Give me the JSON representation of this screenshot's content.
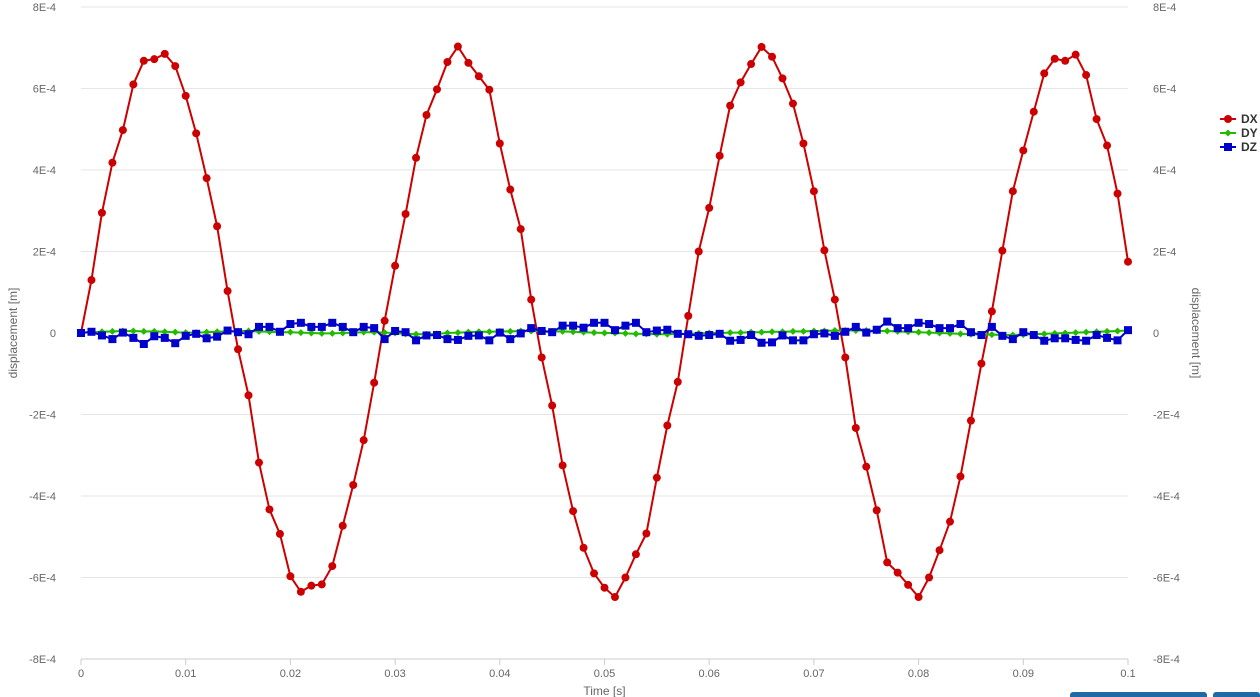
{
  "chart_data": {
    "type": "line",
    "title": "",
    "xlabel": "Time [s]",
    "ylabel": "displacement [m]",
    "ylabel_right": "displacement [m]",
    "xlim": [
      0,
      0.1
    ],
    "ylim": [
      -0.0008,
      0.0008
    ],
    "x_ticks": [
      "0",
      "0.01",
      "0.02",
      "0.03",
      "0.04",
      "0.05",
      "0.06",
      "0.07",
      "0.08",
      "0.09",
      "0.1"
    ],
    "y_ticks": [
      "8E-4",
      "6E-4",
      "4E-4",
      "2E-4",
      "0",
      "-2E-4",
      "-4E-4",
      "-6E-4",
      "-8E-4"
    ],
    "grid": "horizontal",
    "legend_position": "right",
    "x": [
      0,
      0.001,
      0.002,
      0.003,
      0.004,
      0.005,
      0.006,
      0.007,
      0.008,
      0.009,
      0.01,
      0.011,
      0.012,
      0.013,
      0.014,
      0.015,
      0.016,
      0.017,
      0.018,
      0.019,
      0.02,
      0.021,
      0.022,
      0.023,
      0.024,
      0.025,
      0.026,
      0.027,
      0.028,
      0.029,
      0.03,
      0.031,
      0.032,
      0.033,
      0.034,
      0.035,
      0.036,
      0.037,
      0.038,
      0.039,
      0.04,
      0.041,
      0.042,
      0.043,
      0.044,
      0.045,
      0.046,
      0.047,
      0.048,
      0.049,
      0.05,
      0.051,
      0.052,
      0.053,
      0.054,
      0.055,
      0.056,
      0.057,
      0.058,
      0.059,
      0.06,
      0.061,
      0.062,
      0.063,
      0.064,
      0.065,
      0.066,
      0.067,
      0.068,
      0.069,
      0.07,
      0.071,
      0.072,
      0.073,
      0.074,
      0.075,
      0.076,
      0.077,
      0.078,
      0.079,
      0.08,
      0.081,
      0.082,
      0.083,
      0.084,
      0.085,
      0.086,
      0.087,
      0.088,
      0.089,
      0.09,
      0.091,
      0.092,
      0.093,
      0.094,
      0.095,
      0.096,
      0.097,
      0.098,
      0.099,
      0.1
    ],
    "series": [
      {
        "name": "DX",
        "color": "#cc0000",
        "marker": "circle",
        "values": [
          0,
          0.00013,
          0.000295,
          0.000418,
          0.000498,
          0.00061,
          0.000668,
          0.000672,
          0.000685,
          0.000655,
          0.000582,
          0.00049,
          0.00038,
          0.000262,
          0.000103,
          -4e-05,
          -0.000153,
          -0.000318,
          -0.000433,
          -0.000493,
          -0.000597,
          -0.000635,
          -0.00062,
          -0.000617,
          -0.000572,
          -0.000473,
          -0.000373,
          -0.000263,
          -0.000122,
          3e-05,
          0.000165,
          0.000292,
          0.00043,
          0.000535,
          0.000598,
          0.000665,
          0.000703,
          0.000663,
          0.00063,
          0.000597,
          0.000465,
          0.000352,
          0.000255,
          8.2e-05,
          -6e-05,
          -0.000178,
          -0.000325,
          -0.000437,
          -0.000527,
          -0.00059,
          -0.000625,
          -0.000648,
          -0.0006,
          -0.000543,
          -0.000492,
          -0.000355,
          -0.000227,
          -0.00012,
          4.2e-05,
          0.0002,
          0.000307,
          0.000435,
          0.000558,
          0.000615,
          0.00066,
          0.000702,
          0.000678,
          0.000625,
          0.000563,
          0.000465,
          0.000348,
          0.000203,
          8.2e-05,
          -6e-05,
          -0.000233,
          -0.000328,
          -0.000435,
          -0.000563,
          -0.000588,
          -0.000618,
          -0.000648,
          -0.0006,
          -0.000533,
          -0.000463,
          -0.000352,
          -0.000215,
          -7.5e-05,
          5.3e-05,
          0.000202,
          0.000348,
          0.000448,
          0.000543,
          0.000637,
          0.000673,
          0.000668,
          0.000683,
          0.000633,
          0.000525,
          0.00046,
          0.000342,
          0.000175
        ]
      },
      {
        "name": "DY",
        "color": "#22bb00",
        "marker": "diamond",
        "values": [
          0,
          2e-06,
          3e-06,
          4e-06,
          5e-06,
          5e-06,
          4e-06,
          4e-06,
          3e-06,
          2e-06,
          1e-06,
          1e-06,
          2e-06,
          3e-06,
          4e-06,
          5e-06,
          5e-06,
          4e-06,
          3e-06,
          2e-06,
          2e-06,
          1e-06,
          0,
          -1e-06,
          -1e-06,
          0,
          1e-06,
          2e-06,
          2e-06,
          1e-06,
          0,
          -2e-06,
          -3e-06,
          -3e-06,
          -2e-06,
          0,
          1e-06,
          2e-06,
          3e-06,
          3e-06,
          4e-06,
          4e-06,
          5e-06,
          5e-06,
          5e-06,
          4e-06,
          4e-06,
          3e-06,
          2e-06,
          1e-06,
          0,
          0,
          -1e-06,
          -2e-06,
          -2e-06,
          -3e-06,
          -3e-06,
          -2e-06,
          -2e-06,
          -1e-06,
          0,
          0,
          1e-06,
          1e-06,
          2e-06,
          2e-06,
          3e-06,
          3e-06,
          4e-06,
          4e-06,
          5e-06,
          5e-06,
          6e-06,
          6e-06,
          6e-06,
          6e-06,
          5e-06,
          5e-06,
          4e-06,
          3e-06,
          2e-06,
          1e-06,
          0,
          -1e-06,
          -2e-06,
          -3e-06,
          -4e-06,
          -4e-06,
          -5e-06,
          -5e-06,
          -4e-06,
          -3e-06,
          -2e-06,
          -1e-06,
          0,
          1e-06,
          2e-06,
          3e-06,
          4e-06,
          5e-06,
          6e-06
        ]
      },
      {
        "name": "DZ",
        "color": "#0000cc",
        "marker": "square",
        "values": [
          0,
          3e-06,
          -6e-06,
          -1.5e-05,
          1e-06,
          -1.2e-05,
          -2.7e-05,
          -8e-06,
          -1.2e-05,
          -2.5e-05,
          -7e-06,
          -2e-06,
          -1.3e-05,
          -9e-06,
          6e-06,
          2e-06,
          -3e-06,
          1.5e-05,
          1.5e-05,
          3e-06,
          2.2e-05,
          2.5e-05,
          1.5e-05,
          1.5e-05,
          2.5e-05,
          1.5e-05,
          2e-06,
          1.5e-05,
          1.2e-05,
          -1.5e-05,
          5e-06,
          2e-06,
          -1.8e-05,
          -6e-06,
          -5e-06,
          -1.5e-05,
          -1.7e-05,
          -7e-06,
          -6e-06,
          -1.8e-05,
          1e-06,
          -1.5e-05,
          -1e-06,
          1.2e-05,
          5e-06,
          2e-06,
          1.8e-05,
          1.8e-05,
          1.3e-05,
          2.5e-05,
          2.5e-05,
          7e-06,
          1.8e-05,
          2.5e-05,
          2e-06,
          6e-06,
          8e-06,
          -2e-06,
          -3e-06,
          -7e-06,
          -5e-06,
          -2e-06,
          -1.9e-05,
          -1.7e-05,
          -5e-06,
          -2.4e-05,
          -2.3e-05,
          -6e-06,
          -1.8e-05,
          -1.8e-05,
          -3e-06,
          -1e-06,
          -7e-06,
          3e-06,
          1.5e-05,
          1e-06,
          8e-06,
          2.8e-05,
          1.2e-05,
          1.2e-05,
          2.5e-05,
          2.2e-05,
          1.2e-05,
          1.2e-05,
          2.2e-05,
          2e-06,
          -5e-06,
          1.5e-05,
          -7e-06,
          -1.5e-05,
          2e-06,
          -5e-06,
          -1.9e-05,
          -1.3e-05,
          -1.3e-05,
          -1.7e-05,
          -1.9e-05,
          -5e-06,
          -1.2e-05,
          -1.8e-05,
          7e-06
        ]
      }
    ]
  }
}
